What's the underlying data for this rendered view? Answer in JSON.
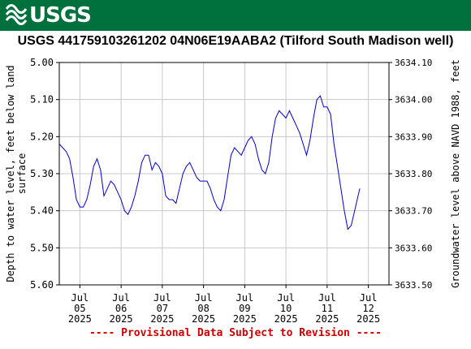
{
  "banner": {
    "agency": "USGS"
  },
  "footer_note": "---- Provisional Data Subject to Revision ----",
  "chart_data": {
    "type": "line",
    "title": "USGS 441759103261202 04N06E19AABA2 (Tilford South Madison well)",
    "ylabel_left": "Depth to water level, feet below land surface",
    "ylabel_right": "Groundwater level above NAVD 1988, feet",
    "ylim_left": [
      5.0,
      5.6
    ],
    "ylim_right": [
      3633.5,
      3634.1
    ],
    "y_inverted": true,
    "yticks_left": [
      "5.00",
      "5.10",
      "5.20",
      "5.30",
      "5.40",
      "5.50",
      "5.60"
    ],
    "yticks_right": [
      "3634.10",
      "3634.00",
      "3633.90",
      "3633.80",
      "3633.70",
      "3633.60",
      "3633.50"
    ],
    "xlim": [
      "2025-07-04T12:00",
      "2025-07-12T12:00"
    ],
    "xticks": [
      {
        "month": "Jul",
        "day": "05",
        "year": "2025"
      },
      {
        "month": "Jul",
        "day": "06",
        "year": "2025"
      },
      {
        "month": "Jul",
        "day": "07",
        "year": "2025"
      },
      {
        "month": "Jul",
        "day": "08",
        "year": "2025"
      },
      {
        "month": "Jul",
        "day": "09",
        "year": "2025"
      },
      {
        "month": "Jul",
        "day": "10",
        "year": "2025"
      },
      {
        "month": "Jul",
        "day": "11",
        "year": "2025"
      },
      {
        "month": "Jul",
        "day": "12",
        "year": "2025"
      }
    ],
    "grid": true,
    "series_color": "#0000cc",
    "series": [
      {
        "name": "",
        "points": [
          [
            "2025-07-04T12:00",
            5.22
          ],
          [
            "2025-07-04T14:00",
            5.23
          ],
          [
            "2025-07-04T16:00",
            5.24
          ],
          [
            "2025-07-04T18:00",
            5.26
          ],
          [
            "2025-07-04T20:00",
            5.31
          ],
          [
            "2025-07-04T22:00",
            5.37
          ],
          [
            "2025-07-05T00:00",
            5.39
          ],
          [
            "2025-07-05T02:00",
            5.39
          ],
          [
            "2025-07-05T04:00",
            5.37
          ],
          [
            "2025-07-05T06:00",
            5.33
          ],
          [
            "2025-07-05T08:00",
            5.28
          ],
          [
            "2025-07-05T10:00",
            5.26
          ],
          [
            "2025-07-05T12:00",
            5.29
          ],
          [
            "2025-07-05T14:00",
            5.36
          ],
          [
            "2025-07-05T16:00",
            5.34
          ],
          [
            "2025-07-05T18:00",
            5.32
          ],
          [
            "2025-07-05T20:00",
            5.33
          ],
          [
            "2025-07-05T22:00",
            5.35
          ],
          [
            "2025-07-06T00:00",
            5.37
          ],
          [
            "2025-07-06T02:00",
            5.4
          ],
          [
            "2025-07-06T04:00",
            5.41
          ],
          [
            "2025-07-06T06:00",
            5.39
          ],
          [
            "2025-07-06T08:00",
            5.36
          ],
          [
            "2025-07-06T10:00",
            5.32
          ],
          [
            "2025-07-06T12:00",
            5.27
          ],
          [
            "2025-07-06T14:00",
            5.25
          ],
          [
            "2025-07-06T16:00",
            5.25
          ],
          [
            "2025-07-06T18:00",
            5.29
          ],
          [
            "2025-07-06T20:00",
            5.27
          ],
          [
            "2025-07-06T22:00",
            5.28
          ],
          [
            "2025-07-07T00:00",
            5.3
          ],
          [
            "2025-07-07T02:00",
            5.36
          ],
          [
            "2025-07-07T04:00",
            5.37
          ],
          [
            "2025-07-07T06:00",
            5.37
          ],
          [
            "2025-07-07T08:00",
            5.38
          ],
          [
            "2025-07-07T10:00",
            5.34
          ],
          [
            "2025-07-07T12:00",
            5.3
          ],
          [
            "2025-07-07T14:00",
            5.28
          ],
          [
            "2025-07-07T16:00",
            5.27
          ],
          [
            "2025-07-07T18:00",
            5.29
          ],
          [
            "2025-07-07T20:00",
            5.31
          ],
          [
            "2025-07-07T22:00",
            5.32
          ],
          [
            "2025-07-08T00:00",
            5.32
          ],
          [
            "2025-07-08T02:00",
            5.32
          ],
          [
            "2025-07-08T04:00",
            5.34
          ],
          [
            "2025-07-08T06:00",
            5.37
          ],
          [
            "2025-07-08T08:00",
            5.39
          ],
          [
            "2025-07-08T10:00",
            5.4
          ],
          [
            "2025-07-08T12:00",
            5.37
          ],
          [
            "2025-07-08T14:00",
            5.31
          ],
          [
            "2025-07-08T16:00",
            5.25
          ],
          [
            "2025-07-08T18:00",
            5.23
          ],
          [
            "2025-07-08T20:00",
            5.24
          ],
          [
            "2025-07-08T22:00",
            5.25
          ],
          [
            "2025-07-09T00:00",
            5.23
          ],
          [
            "2025-07-09T02:00",
            5.21
          ],
          [
            "2025-07-09T04:00",
            5.2
          ],
          [
            "2025-07-09T06:00",
            5.22
          ],
          [
            "2025-07-09T08:00",
            5.26
          ],
          [
            "2025-07-09T10:00",
            5.29
          ],
          [
            "2025-07-09T12:00",
            5.3
          ],
          [
            "2025-07-09T14:00",
            5.27
          ],
          [
            "2025-07-09T16:00",
            5.2
          ],
          [
            "2025-07-09T18:00",
            5.15
          ],
          [
            "2025-07-09T20:00",
            5.13
          ],
          [
            "2025-07-09T22:00",
            5.14
          ],
          [
            "2025-07-10T00:00",
            5.15
          ],
          [
            "2025-07-10T02:00",
            5.13
          ],
          [
            "2025-07-10T04:00",
            5.15
          ],
          [
            "2025-07-10T06:00",
            5.17
          ],
          [
            "2025-07-10T08:00",
            5.19
          ],
          [
            "2025-07-10T10:00",
            5.22
          ],
          [
            "2025-07-10T12:00",
            5.25
          ],
          [
            "2025-07-10T14:00",
            5.21
          ],
          [
            "2025-07-10T16:00",
            5.15
          ],
          [
            "2025-07-10T18:00",
            5.1
          ],
          [
            "2025-07-10T20:00",
            5.09
          ],
          [
            "2025-07-10T22:00",
            5.12
          ],
          [
            "2025-07-11T00:00",
            5.12
          ],
          [
            "2025-07-11T02:00",
            5.14
          ],
          [
            "2025-07-11T04:00",
            5.22
          ],
          [
            "2025-07-11T06:00",
            5.28
          ],
          [
            "2025-07-11T08:00",
            5.34
          ],
          [
            "2025-07-11T10:00",
            5.4
          ],
          [
            "2025-07-11T12:00",
            5.45
          ],
          [
            "2025-07-11T14:00",
            5.44
          ],
          [
            "2025-07-11T16:00",
            5.4
          ],
          [
            "2025-07-11T18:00",
            5.36
          ],
          [
            "2025-07-11T19:00",
            5.34
          ]
        ]
      }
    ]
  }
}
